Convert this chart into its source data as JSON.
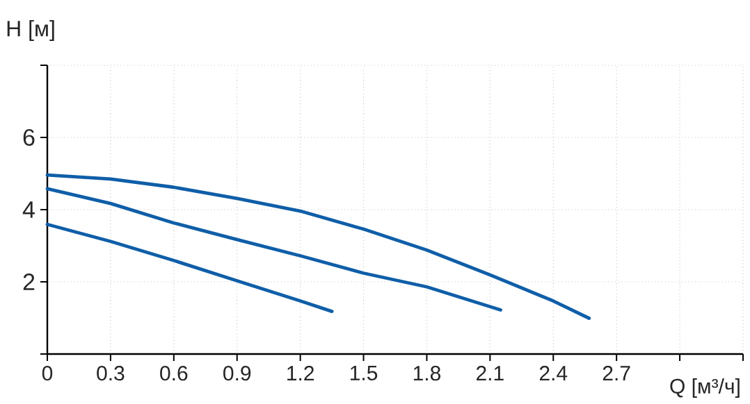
{
  "chart_data": {
    "type": "line",
    "xlabel": "Q [м³/ч]",
    "ylabel": "H [м]",
    "xlim": [
      0,
      3.3
    ],
    "ylim": [
      0,
      8
    ],
    "xticks": [
      0,
      0.3,
      0.6,
      0.9,
      1.2,
      1.5,
      1.8,
      2.1,
      2.4,
      2.7,
      {
        "value": 3.0,
        "label": null
      },
      {
        "value": 3.3,
        "label": null
      }
    ],
    "yticks": [
      {
        "value": 0,
        "label": null
      },
      2,
      4,
      6,
      {
        "value": 8,
        "label": null
      }
    ],
    "grid": true,
    "marker": "none",
    "line_style": "solid",
    "series": [
      {
        "color": "#0f5ea8",
        "x": [
          0,
          0.3,
          0.6,
          0.9,
          1.2,
          1.5,
          1.8,
          2.1,
          2.4,
          2.57
        ],
        "values": [
          4.96,
          4.85,
          4.62,
          4.31,
          3.96,
          3.46,
          2.88,
          2.19,
          1.47,
          0.99
        ]
      },
      {
        "color": "#0f5ea8",
        "x": [
          0,
          0.3,
          0.6,
          0.9,
          1.2,
          1.5,
          1.8,
          2.15
        ],
        "values": [
          4.58,
          4.17,
          3.63,
          3.17,
          2.72,
          2.24,
          1.86,
          1.22
        ]
      },
      {
        "color": "#0f5ea8",
        "x": [
          0,
          0.3,
          0.6,
          0.9,
          1.2,
          1.35
        ],
        "values": [
          3.59,
          3.12,
          2.59,
          2.03,
          1.47,
          1.18
        ]
      }
    ]
  }
}
